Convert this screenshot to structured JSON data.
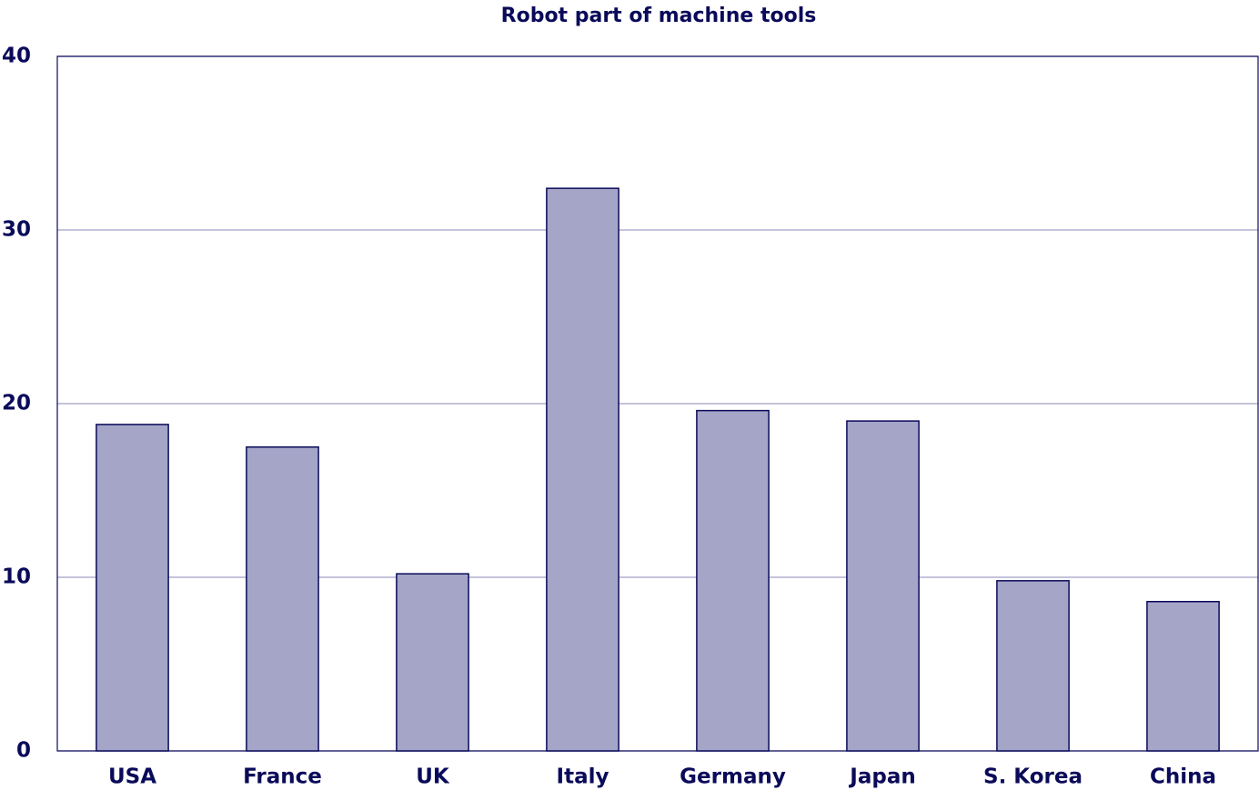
{
  "chart_data": {
    "type": "bar",
    "title": "Robot part of machine tools",
    "categories": [
      "USA",
      "France",
      "UK",
      "Italy",
      "Germany",
      "Japan",
      "S. Korea",
      "China"
    ],
    "values": [
      18.8,
      17.5,
      10.2,
      32.4,
      19.6,
      19.0,
      9.8,
      8.6
    ],
    "color": "#a5a5c8",
    "ylim": [
      0,
      40
    ],
    "yticks": [
      0,
      10,
      20,
      30,
      40
    ],
    "grid": true
  }
}
